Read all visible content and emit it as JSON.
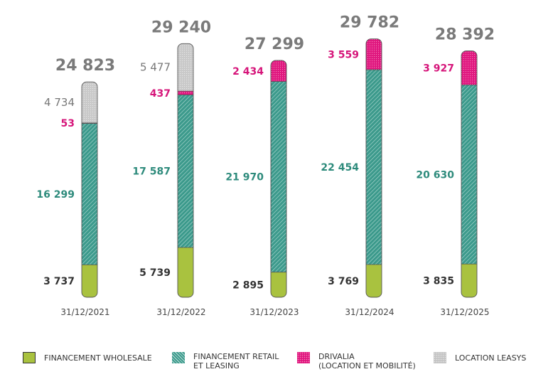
{
  "chart_data": {
    "type": "bar",
    "stacked": true,
    "categories": [
      "31/12/2021",
      "31/12/2022",
      "31/12/2023",
      "31/12/2024",
      "31/12/2025"
    ],
    "totals": [
      "24 823",
      "29 240",
      "27 299",
      "29 782",
      "28 392"
    ],
    "series": [
      {
        "name": "FINANCEMENT WHOLESALE",
        "color": "#a9c23f",
        "label_color": "#333333",
        "values": [
          3737,
          5739,
          2895,
          3769,
          3835
        ],
        "labels": [
          "3 737",
          "5 739",
          "2 895",
          "3 769",
          "3 835"
        ]
      },
      {
        "name": "FINANCEMENT RETAIL\nET LEASING",
        "color": "#3c9a8c",
        "label_color": "#2e8b7c",
        "values": [
          16299,
          17587,
          21970,
          22454,
          20630
        ],
        "labels": [
          "16 299",
          "17 587",
          "21 970",
          "22 454",
          "20 630"
        ]
      },
      {
        "name": "DRIVALIA\n(LOCATION ET MOBILITÉ)",
        "color": "#e0177f",
        "label_color": "#d6157a",
        "values": [
          53,
          437,
          2434,
          3559,
          3927
        ],
        "labels": [
          "53",
          "437",
          "2 434",
          "3 559",
          "3 927"
        ]
      },
      {
        "name": "LOCATION LEASYS",
        "color": "#c4c4c4",
        "label_color": "#777777",
        "values": [
          4734,
          5477,
          0,
          0,
          0
        ],
        "labels": [
          "4 734",
          "5 477",
          "",
          "",
          ""
        ]
      }
    ],
    "legend_position": "bottom",
    "grid": false
  }
}
